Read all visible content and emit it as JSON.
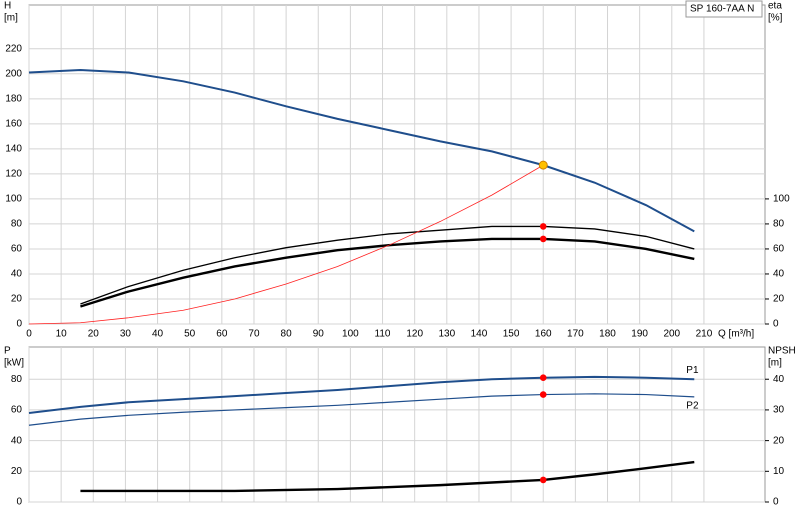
{
  "chart_data": [
    {
      "type": "line",
      "title": "SP 160-7AA N",
      "y_label": [
        "H",
        "[m]"
      ],
      "y2_label": [
        "eta",
        "[%]"
      ],
      "x_label": "Q [m³/h]",
      "xlim": [
        0,
        229
      ],
      "xticks": [
        0,
        10,
        20,
        30,
        40,
        50,
        60,
        70,
        80,
        90,
        100,
        110,
        120,
        130,
        140,
        150,
        160,
        170,
        180,
        190,
        200,
        210
      ],
      "ylim": [
        0,
        255
      ],
      "yticks": [
        0,
        20,
        40,
        60,
        80,
        100,
        120,
        140,
        160,
        180,
        200,
        220
      ],
      "y2lim": [
        0,
        255
      ],
      "y2ticks": [
        0,
        20,
        40,
        60,
        80,
        100
      ],
      "grid": true,
      "series": [
        {
          "color": "#1f4e8c",
          "width": 2,
          "x": [
            0,
            16,
            31,
            48,
            64,
            80,
            96,
            112,
            128,
            144,
            160,
            176,
            192,
            207
          ],
          "values": [
            201,
            203,
            201,
            194,
            185,
            174,
            164,
            155,
            146,
            138,
            127,
            113,
            95,
            74
          ]
        },
        {
          "color": "#000000",
          "width": 1.3,
          "axis": "y2",
          "x": [
            16,
            31,
            48,
            64,
            80,
            96,
            112,
            128,
            144,
            160,
            176,
            192,
            207
          ],
          "values": [
            16,
            30,
            43,
            53,
            61,
            67,
            72,
            75,
            78,
            78,
            76,
            70,
            60
          ]
        },
        {
          "color": "#000000",
          "width": 2.4,
          "axis": "y2",
          "x": [
            16,
            31,
            48,
            64,
            80,
            96,
            112,
            128,
            144,
            160,
            176,
            192,
            207
          ],
          "values": [
            14,
            26,
            37,
            46,
            53,
            59,
            63,
            66,
            68,
            68,
            66,
            60,
            52
          ]
        },
        {
          "color": "#ff2020",
          "width": 0.8,
          "x": [
            0,
            16,
            31,
            48,
            64,
            80,
            96,
            112,
            128,
            144,
            160
          ],
          "values": [
            0,
            1,
            5,
            11,
            20,
            32,
            46,
            63,
            82,
            103,
            127
          ]
        }
      ],
      "markers": [
        {
          "x": 160,
          "y": 127,
          "color": "#ffc000"
        },
        {
          "x": 160,
          "y": 78,
          "color": "#ff0000",
          "axis": "y2"
        },
        {
          "x": 160,
          "y": 68,
          "color": "#ff0000",
          "axis": "y2"
        }
      ]
    },
    {
      "type": "line",
      "y_label": [
        "P",
        "[kW]"
      ],
      "y2_label": [
        "NPSH",
        "[m]"
      ],
      "xlim": [
        0,
        229
      ],
      "xticks": [
        0,
        10,
        20,
        30,
        40,
        50,
        60,
        70,
        80,
        90,
        100,
        110,
        120,
        130,
        140,
        150,
        160,
        170,
        180,
        190,
        200,
        210
      ],
      "ylim": [
        0,
        101
      ],
      "yticks": [
        0,
        20,
        40,
        60,
        80
      ],
      "y2lim": [
        0,
        50.5
      ],
      "y2ticks": [
        0,
        10,
        20,
        30,
        40
      ],
      "grid": true,
      "series": [
        {
          "name": "P1",
          "color": "#1f4e8c",
          "width": 2,
          "x": [
            0,
            16,
            31,
            48,
            64,
            80,
            96,
            112,
            128,
            144,
            160,
            176,
            192,
            207
          ],
          "values": [
            58,
            62,
            65,
            67,
            69,
            71,
            73,
            75.5,
            78,
            80,
            81,
            81.5,
            81,
            80
          ]
        },
        {
          "name": "P2",
          "color": "#1f4e8c",
          "width": 1.2,
          "x": [
            0,
            16,
            31,
            48,
            64,
            80,
            96,
            112,
            128,
            144,
            160,
            176,
            192,
            207
          ],
          "values": [
            50,
            54,
            56.5,
            58.5,
            60,
            61.5,
            63,
            65,
            67,
            69,
            70,
            70.5,
            70,
            68.5
          ]
        },
        {
          "color": "#000000",
          "width": 2.4,
          "axis": "y2",
          "x": [
            16,
            64,
            96,
            128,
            160,
            176,
            192,
            207
          ],
          "values": [
            3.6,
            3.6,
            4.2,
            5.5,
            7.2,
            9,
            11,
            13
          ]
        }
      ],
      "markers": [
        {
          "x": 160,
          "y": 81,
          "color": "#ff0000"
        },
        {
          "x": 160,
          "y": 70,
          "color": "#ff0000"
        },
        {
          "x": 160,
          "y": 7.2,
          "color": "#ff0000",
          "axis": "y2"
        }
      ]
    }
  ]
}
